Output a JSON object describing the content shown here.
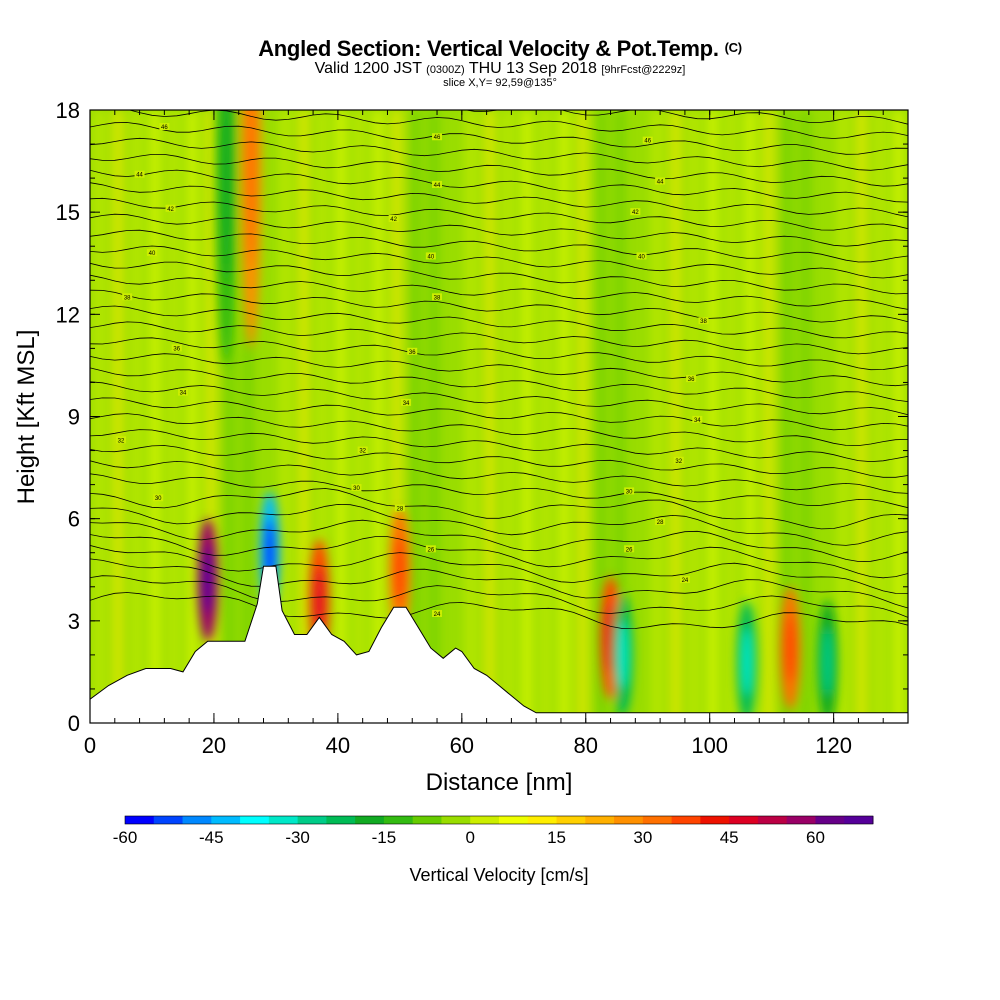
{
  "title": "Angled Section: Vertical Velocity & Pot.Temp.",
  "title_units": "(C)",
  "subtitle": {
    "valid": "Valid 1200 JST",
    "utc": "(0300Z)",
    "date": "THU 13 Sep 2018",
    "fcst": "[9hrFcst@2229z]"
  },
  "slice": "slice X,Y= 92,59@135°",
  "chart_data": {
    "type": "heatmap",
    "xlabel": "Distance [nm]",
    "ylabel": "Height [Kft MSL]",
    "xlim": [
      0,
      132
    ],
    "ylim": [
      0,
      18
    ],
    "xticks": [
      "0",
      "20",
      "40",
      "60",
      "80",
      "100",
      "120"
    ],
    "xtick_values": [
      0,
      20,
      40,
      60,
      80,
      100,
      120
    ],
    "yticks": [
      "0",
      "3",
      "6",
      "9",
      "12",
      "15",
      "18"
    ],
    "ytick_values": [
      0,
      3,
      6,
      9,
      12,
      15,
      18
    ],
    "colorbar": {
      "title": "Vertical Velocity [cm/s]",
      "min": -60,
      "max": 70,
      "step": 5,
      "tick_labels": [
        "-60",
        "-45",
        "-30",
        "-15",
        "0",
        "15",
        "30",
        "45",
        "60"
      ],
      "tick_values": [
        -60,
        -45,
        -30,
        -15,
        0,
        15,
        30,
        45,
        60
      ],
      "colors": [
        "#0000ff",
        "#0044ff",
        "#0088ff",
        "#00bbff",
        "#00ffff",
        "#00e8c8",
        "#00cc88",
        "#00bb55",
        "#11aa22",
        "#33bb11",
        "#66cc00",
        "#99dd00",
        "#ccee00",
        "#eeff00",
        "#ffee00",
        "#ffd000",
        "#ffb000",
        "#ff9000",
        "#ff7000",
        "#ff4400",
        "#ee1100",
        "#dd0022",
        "#bb0044",
        "#990066",
        "#660088",
        "#550099"
      ]
    },
    "terrain_kft": [
      [
        0,
        0.7
      ],
      [
        1.5,
        0.9
      ],
      [
        3,
        1.1
      ],
      [
        6,
        1.4
      ],
      [
        9,
        1.6
      ],
      [
        13,
        1.6
      ],
      [
        15,
        1.5
      ],
      [
        17,
        2.1
      ],
      [
        19,
        2.4
      ],
      [
        22,
        2.4
      ],
      [
        25,
        2.4
      ],
      [
        27,
        3.5
      ],
      [
        28,
        4.6
      ],
      [
        30,
        4.6
      ],
      [
        31,
        3.3
      ],
      [
        33,
        2.6
      ],
      [
        35,
        2.6
      ],
      [
        37,
        3.1
      ],
      [
        39,
        2.6
      ],
      [
        41,
        2.4
      ],
      [
        43,
        2.0
      ],
      [
        45,
        2.1
      ],
      [
        47,
        2.8
      ],
      [
        49,
        3.4
      ],
      [
        51,
        3.4
      ],
      [
        53,
        2.8
      ],
      [
        55,
        2.2
      ],
      [
        57,
        1.9
      ],
      [
        59,
        2.2
      ],
      [
        60,
        2.1
      ],
      [
        62,
        1.6
      ],
      [
        64,
        1.4
      ],
      [
        66,
        1.1
      ],
      [
        68,
        0.8
      ],
      [
        70,
        0.5
      ],
      [
        72,
        0.3
      ],
      [
        132,
        0.3
      ]
    ],
    "vertical_velocity_features": [
      {
        "x_nm": 19,
        "z_kft": 4.2,
        "w_cm_s": 55
      },
      {
        "x_nm": 22,
        "z_kft": 16,
        "w_cm_s": -15
      },
      {
        "x_nm": 26,
        "z_kft": 16.5,
        "w_cm_s": 25
      },
      {
        "x_nm": 29,
        "z_kft": 5.0,
        "w_cm_s": -45
      },
      {
        "x_nm": 37,
        "z_kft": 3.6,
        "w_cm_s": 35
      },
      {
        "x_nm": 50,
        "z_kft": 4.5,
        "w_cm_s": 30
      },
      {
        "x_nm": 84,
        "z_kft": 2.5,
        "w_cm_s": 35
      },
      {
        "x_nm": 86,
        "z_kft": 2.0,
        "w_cm_s": -25
      },
      {
        "x_nm": 106,
        "z_kft": 1.8,
        "w_cm_s": -25
      },
      {
        "x_nm": 113,
        "z_kft": 2.2,
        "w_cm_s": 30
      },
      {
        "x_nm": 119,
        "z_kft": 1.8,
        "w_cm_s": -20
      }
    ],
    "isentrope_labels": [
      {
        "x_nm": 12,
        "z_kft": 17.5,
        "text": "46"
      },
      {
        "x_nm": 56,
        "z_kft": 17.2,
        "text": "46"
      },
      {
        "x_nm": 90,
        "z_kft": 17.1,
        "text": "46"
      },
      {
        "x_nm": 8,
        "z_kft": 16.1,
        "text": "44"
      },
      {
        "x_nm": 56,
        "z_kft": 15.8,
        "text": "44"
      },
      {
        "x_nm": 92,
        "z_kft": 15.9,
        "text": "44"
      },
      {
        "x_nm": 13,
        "z_kft": 15.1,
        "text": "42"
      },
      {
        "x_nm": 49,
        "z_kft": 14.8,
        "text": "42"
      },
      {
        "x_nm": 88,
        "z_kft": 15.0,
        "text": "42"
      },
      {
        "x_nm": 10,
        "z_kft": 13.8,
        "text": "40"
      },
      {
        "x_nm": 55,
        "z_kft": 13.7,
        "text": "40"
      },
      {
        "x_nm": 89,
        "z_kft": 13.7,
        "text": "40"
      },
      {
        "x_nm": 6,
        "z_kft": 12.5,
        "text": "38"
      },
      {
        "x_nm": 56,
        "z_kft": 12.5,
        "text": "38"
      },
      {
        "x_nm": 99,
        "z_kft": 11.8,
        "text": "38"
      },
      {
        "x_nm": 14,
        "z_kft": 11.0,
        "text": "36"
      },
      {
        "x_nm": 52,
        "z_kft": 10.9,
        "text": "36"
      },
      {
        "x_nm": 97,
        "z_kft": 10.1,
        "text": "36"
      },
      {
        "x_nm": 15,
        "z_kft": 9.7,
        "text": "34"
      },
      {
        "x_nm": 51,
        "z_kft": 9.4,
        "text": "34"
      },
      {
        "x_nm": 98,
        "z_kft": 8.9,
        "text": "34"
      },
      {
        "x_nm": 5,
        "z_kft": 8.3,
        "text": "32"
      },
      {
        "x_nm": 44,
        "z_kft": 8.0,
        "text": "32"
      },
      {
        "x_nm": 95,
        "z_kft": 7.7,
        "text": "32"
      },
      {
        "x_nm": 11,
        "z_kft": 6.6,
        "text": "30"
      },
      {
        "x_nm": 43,
        "z_kft": 6.9,
        "text": "30"
      },
      {
        "x_nm": 87,
        "z_kft": 6.8,
        "text": "30"
      },
      {
        "x_nm": 50,
        "z_kft": 6.3,
        "text": "28"
      },
      {
        "x_nm": 92,
        "z_kft": 5.9,
        "text": "28"
      },
      {
        "x_nm": 55,
        "z_kft": 5.1,
        "text": "26"
      },
      {
        "x_nm": 87,
        "z_kft": 5.1,
        "text": "26"
      },
      {
        "x_nm": 56,
        "z_kft": 3.2,
        "text": "24"
      },
      {
        "x_nm": 96,
        "z_kft": 4.2,
        "text": "24"
      }
    ]
  }
}
